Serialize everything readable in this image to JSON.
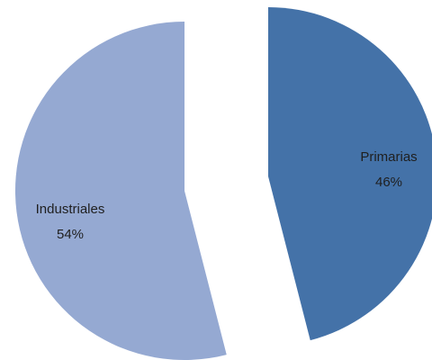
{
  "chart_data": {
    "type": "pie",
    "exploded": true,
    "slices": [
      {
        "name": "Primarias",
        "value": 46,
        "label": "Primarias",
        "value_label": "46%",
        "color": "#4472a8"
      },
      {
        "name": "Industriales",
        "value": 54,
        "label": "Industriales",
        "value_label": "54%",
        "color": "#95a9d2"
      }
    ],
    "title": "",
    "legend": "none",
    "start_angle": "12 o'clock",
    "direction": "clockwise"
  }
}
